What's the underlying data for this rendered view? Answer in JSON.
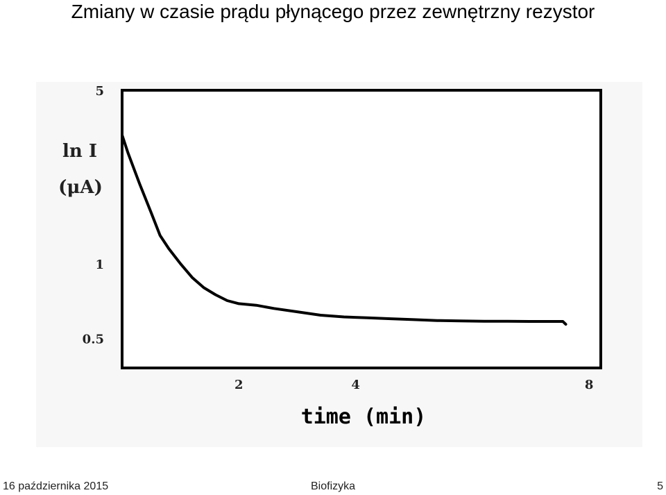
{
  "slide": {
    "title": "Zmiany w czasie prądu płynącego przez zewnętrzny rezystor",
    "footer_date": "16 października 2015",
    "footer_center": "Biofizyka",
    "page_number": "5"
  },
  "chart_data": {
    "type": "line",
    "title": "",
    "ylabel": [
      "ln I",
      "(μA)"
    ],
    "xlabel": "time (min)",
    "y_scale": "log",
    "ylim": [
      0.38,
      5
    ],
    "xlim": [
      0,
      8.2
    ],
    "y_ticks": [
      {
        "value": 5,
        "label": "5"
      },
      {
        "value": 1,
        "label": "1"
      },
      {
        "value": 0.5,
        "label": "0.5"
      }
    ],
    "x_ticks": [
      {
        "value": 2,
        "label": "2"
      },
      {
        "value": 4,
        "label": "4"
      },
      {
        "value": 8,
        "label": "8"
      }
    ],
    "grid": false,
    "legend": "none",
    "line_color": "#000000",
    "series": [
      {
        "x": [
          0,
          0.1,
          0.3,
          0.5,
          0.65,
          0.8,
          1.0,
          1.2,
          1.4,
          1.6,
          1.8,
          2.0,
          2.3,
          2.6,
          3.0,
          3.4,
          3.8,
          4.2,
          4.6,
          5.0,
          5.4,
          5.8,
          6.2,
          6.6,
          7.0,
          7.3,
          7.55,
          7.6
        ],
        "y": [
          3.3,
          2.8,
          2.1,
          1.6,
          1.3,
          1.15,
          1.0,
          0.88,
          0.8,
          0.75,
          0.71,
          0.69,
          0.68,
          0.66,
          0.64,
          0.62,
          0.61,
          0.605,
          0.6,
          0.595,
          0.59,
          0.588,
          0.586,
          0.586,
          0.585,
          0.585,
          0.585,
          0.57
        ]
      }
    ]
  }
}
